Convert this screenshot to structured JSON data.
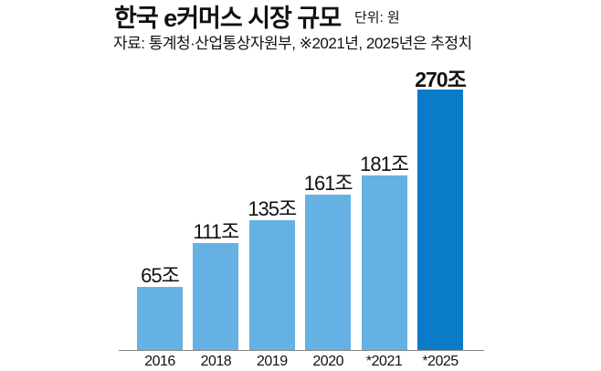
{
  "header": {
    "title": "한국 e커머스 시장 규모",
    "unit": "단위: 원",
    "source": "자료: 통계청·산업통상자원부, ※2021년, 2025년은 추정치"
  },
  "colors": {
    "bar": "#65b1e3",
    "highlight_bar": "#0a7bc8",
    "axis": "#888888"
  },
  "chart_data": {
    "type": "bar",
    "title": "한국 e커머스 시장 규모",
    "subtitle": "단위: 원",
    "source": "자료: 통계청·산업통상자원부, ※2021년, 2025년은 추정치",
    "xlabel": "",
    "ylabel": "",
    "categories": [
      "2016",
      "2018",
      "2019",
      "2020",
      "*2021",
      "*2025"
    ],
    "values": [
      65,
      111,
      135,
      161,
      181,
      270
    ],
    "labels": [
      "65조",
      "111조",
      "135조",
      "161조",
      "181조",
      "270조"
    ],
    "value_unit": "조",
    "highlight": "*2025",
    "ylim": [
      0,
      270
    ],
    "grid": false,
    "legend": null
  }
}
